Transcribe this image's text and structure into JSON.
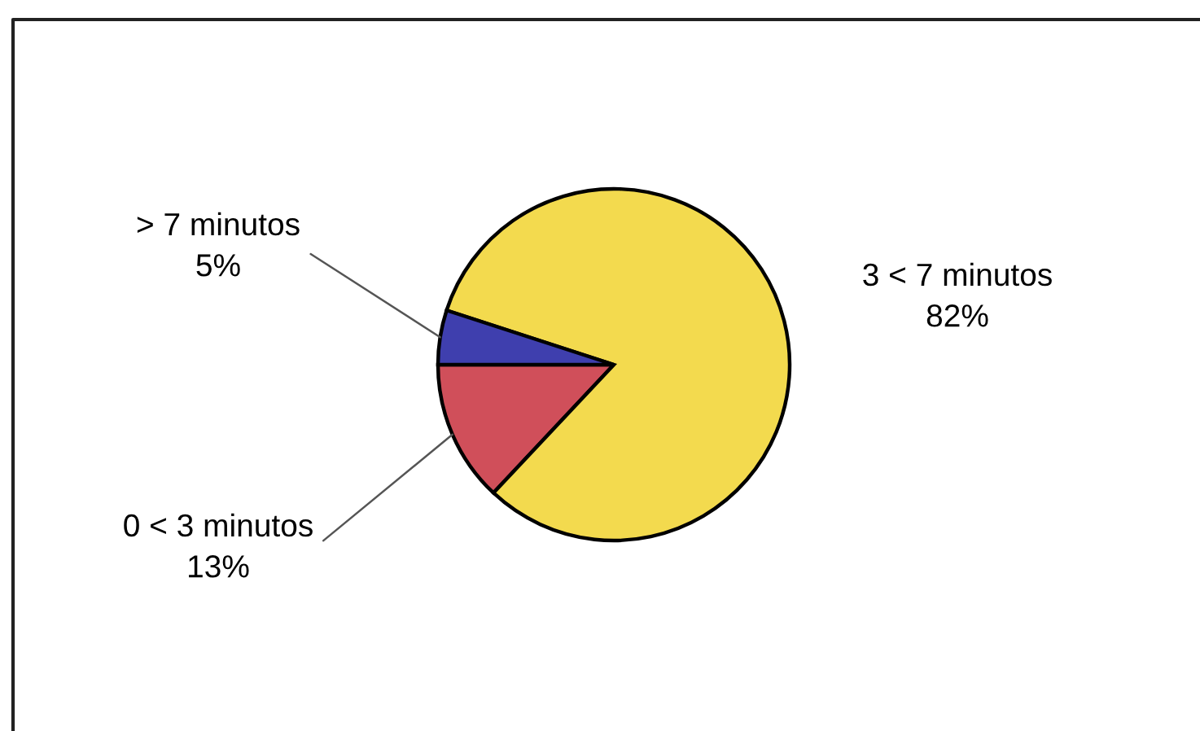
{
  "chart_data": {
    "type": "pie",
    "categories": [
      "0 < 3 minutos",
      "3 < 7 minutos",
      "> 7 minutos"
    ],
    "values": [
      13,
      82,
      5
    ],
    "colors": [
      "#d04f5a",
      "#f3da4e",
      "#3f3fae"
    ],
    "value_labels": [
      "13%",
      "82%",
      "5%"
    ]
  }
}
